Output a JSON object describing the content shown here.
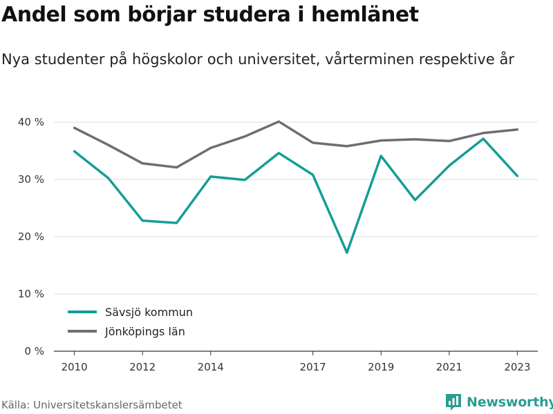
{
  "title": "Andel som börjar studera i hemlänet",
  "subtitle": "Nya studenter på högskolor och universitet, vårterminen respektive år",
  "source": "Källa: Universitetskanslersämbetet",
  "brand": {
    "name": "Newsworthy",
    "color": "#2a9d93",
    "icon": "bar-chart-logo-icon"
  },
  "chart_data": {
    "type": "line",
    "title": "Andel som börjar studera i hemlänet",
    "subtitle": "Nya studenter på högskolor och universitet, vårterminen respektive år",
    "x": [
      2010,
      2011,
      2012,
      2013,
      2014,
      2015,
      2016,
      2017,
      2018,
      2019,
      2020,
      2021,
      2022,
      2023
    ],
    "x_ticks": [
      2010,
      2012,
      2014,
      2017,
      2019,
      2021,
      2023
    ],
    "xlim": [
      2009.4,
      2023.6
    ],
    "ylim": [
      0,
      40
    ],
    "y_ticks": [
      0,
      10,
      20,
      30,
      40
    ],
    "y_tick_labels": [
      "0 %",
      "10 %",
      "20 %",
      "30 %",
      "40 %"
    ],
    "grid": "horizontal",
    "legend_position": "bottom-left",
    "series": [
      {
        "name": "Sävsjö kommun",
        "color": "#129e96",
        "values": [
          34.9,
          30.2,
          22.8,
          22.4,
          30.5,
          29.9,
          34.6,
          30.8,
          17.2,
          34.1,
          26.4,
          32.4,
          37.1,
          30.6
        ]
      },
      {
        "name": "Jönköpings län",
        "color": "#6e6d73",
        "values": [
          39.0,
          36.0,
          32.8,
          32.1,
          35.5,
          37.5,
          40.1,
          36.4,
          35.8,
          36.8,
          37.0,
          36.7,
          38.1,
          38.7
        ]
      }
    ]
  }
}
